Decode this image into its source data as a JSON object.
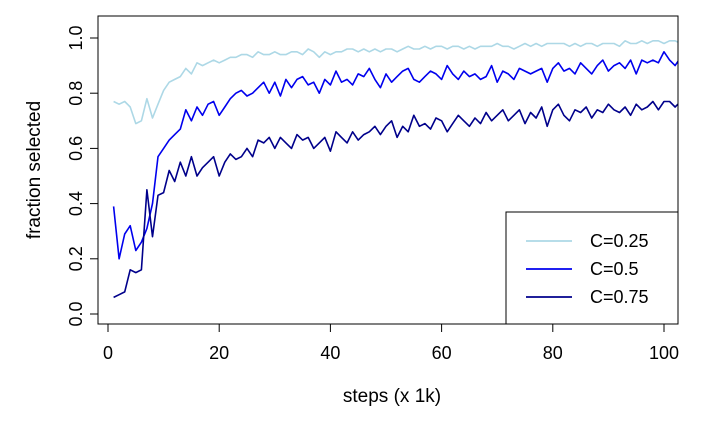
{
  "chart_data": {
    "type": "line",
    "title": "",
    "xlabel": "steps (x 1k)",
    "ylabel": "fraction selected",
    "xlim": [
      0,
      104
    ],
    "ylim": [
      0,
      1
    ],
    "xticks": [
      "0",
      "20",
      "40",
      "60",
      "80",
      "100"
    ],
    "yticks": [
      "0.0",
      "0.2",
      "0.4",
      "0.6",
      "0.8",
      "1.0"
    ],
    "grid": false,
    "legend_position": "bottom-right",
    "series": [
      {
        "name": "C=0.25",
        "color": "#add8e6",
        "x": [
          1,
          2,
          3,
          4,
          5,
          6,
          7,
          8,
          9,
          10,
          11,
          12,
          13,
          14,
          15,
          16,
          17,
          18,
          19,
          20,
          21,
          22,
          23,
          24,
          25,
          26,
          27,
          28,
          29,
          30,
          31,
          32,
          33,
          34,
          35,
          36,
          37,
          38,
          39,
          40,
          41,
          42,
          43,
          44,
          45,
          46,
          47,
          48,
          49,
          50,
          51,
          52,
          53,
          54,
          55,
          56,
          57,
          58,
          59,
          60,
          61,
          62,
          63,
          64,
          65,
          66,
          67,
          68,
          69,
          70,
          71,
          72,
          73,
          74,
          75,
          76,
          77,
          78,
          79,
          80,
          81,
          82,
          83,
          84,
          85,
          86,
          87,
          88,
          89,
          90,
          91,
          92,
          93,
          94,
          95,
          96,
          97,
          98,
          99,
          100,
          101,
          102,
          103,
          104
        ],
        "values": [
          0.77,
          0.76,
          0.77,
          0.75,
          0.69,
          0.7,
          0.78,
          0.71,
          0.76,
          0.81,
          0.84,
          0.85,
          0.86,
          0.89,
          0.87,
          0.91,
          0.9,
          0.91,
          0.92,
          0.91,
          0.92,
          0.93,
          0.93,
          0.94,
          0.94,
          0.93,
          0.95,
          0.94,
          0.94,
          0.95,
          0.94,
          0.94,
          0.95,
          0.95,
          0.94,
          0.96,
          0.95,
          0.93,
          0.95,
          0.94,
          0.95,
          0.95,
          0.96,
          0.96,
          0.95,
          0.96,
          0.95,
          0.96,
          0.95,
          0.96,
          0.96,
          0.95,
          0.96,
          0.97,
          0.96,
          0.96,
          0.97,
          0.96,
          0.97,
          0.97,
          0.96,
          0.97,
          0.97,
          0.96,
          0.97,
          0.96,
          0.97,
          0.97,
          0.97,
          0.98,
          0.97,
          0.97,
          0.96,
          0.97,
          0.98,
          0.97,
          0.98,
          0.97,
          0.98,
          0.98,
          0.98,
          0.98,
          0.97,
          0.98,
          0.97,
          0.98,
          0.98,
          0.97,
          0.98,
          0.98,
          0.98,
          0.97,
          0.99,
          0.98,
          0.98,
          0.99,
          0.98,
          0.99,
          0.99,
          0.98,
          0.99,
          0.99,
          0.98,
          0.98
        ]
      },
      {
        "name": "C=0.5",
        "color": "#0000ee",
        "x": [
          1,
          2,
          3,
          4,
          5,
          6,
          7,
          8,
          9,
          10,
          11,
          12,
          13,
          14,
          15,
          16,
          17,
          18,
          19,
          20,
          21,
          22,
          23,
          24,
          25,
          26,
          27,
          28,
          29,
          30,
          31,
          32,
          33,
          34,
          35,
          36,
          37,
          38,
          39,
          40,
          41,
          42,
          43,
          44,
          45,
          46,
          47,
          48,
          49,
          50,
          51,
          52,
          53,
          54,
          55,
          56,
          57,
          58,
          59,
          60,
          61,
          62,
          63,
          64,
          65,
          66,
          67,
          68,
          69,
          70,
          71,
          72,
          73,
          74,
          75,
          76,
          77,
          78,
          79,
          80,
          81,
          82,
          83,
          84,
          85,
          86,
          87,
          88,
          89,
          90,
          91,
          92,
          93,
          94,
          95,
          96,
          97,
          98,
          99,
          100,
          101,
          102,
          103,
          104
        ],
        "values": [
          0.39,
          0.2,
          0.29,
          0.32,
          0.23,
          0.26,
          0.31,
          0.4,
          0.57,
          0.6,
          0.63,
          0.65,
          0.67,
          0.74,
          0.7,
          0.75,
          0.72,
          0.76,
          0.77,
          0.72,
          0.75,
          0.78,
          0.8,
          0.81,
          0.79,
          0.8,
          0.82,
          0.84,
          0.8,
          0.84,
          0.79,
          0.85,
          0.82,
          0.85,
          0.86,
          0.83,
          0.84,
          0.8,
          0.85,
          0.83,
          0.88,
          0.84,
          0.85,
          0.83,
          0.87,
          0.86,
          0.89,
          0.85,
          0.82,
          0.87,
          0.84,
          0.86,
          0.88,
          0.89,
          0.85,
          0.84,
          0.86,
          0.88,
          0.87,
          0.85,
          0.9,
          0.87,
          0.85,
          0.88,
          0.86,
          0.87,
          0.85,
          0.86,
          0.9,
          0.84,
          0.88,
          0.87,
          0.85,
          0.89,
          0.88,
          0.87,
          0.88,
          0.89,
          0.84,
          0.89,
          0.91,
          0.88,
          0.89,
          0.87,
          0.91,
          0.89,
          0.87,
          0.9,
          0.92,
          0.88,
          0.9,
          0.91,
          0.89,
          0.92,
          0.87,
          0.92,
          0.91,
          0.92,
          0.91,
          0.95,
          0.92,
          0.9,
          0.93,
          0.9
        ]
      },
      {
        "name": "C=0.75",
        "color": "#00008b",
        "x": [
          1,
          2,
          3,
          4,
          5,
          6,
          7,
          8,
          9,
          10,
          11,
          12,
          13,
          14,
          15,
          16,
          17,
          18,
          19,
          20,
          21,
          22,
          23,
          24,
          25,
          26,
          27,
          28,
          29,
          30,
          31,
          32,
          33,
          34,
          35,
          36,
          37,
          38,
          39,
          40,
          41,
          42,
          43,
          44,
          45,
          46,
          47,
          48,
          49,
          50,
          51,
          52,
          53,
          54,
          55,
          56,
          57,
          58,
          59,
          60,
          61,
          62,
          63,
          64,
          65,
          66,
          67,
          68,
          69,
          70,
          71,
          72,
          73,
          74,
          75,
          76,
          77,
          78,
          79,
          80,
          81,
          82,
          83,
          84,
          85,
          86,
          87,
          88,
          89,
          90,
          91,
          92,
          93,
          94,
          95,
          96,
          97,
          98,
          99,
          100,
          101,
          102,
          103,
          104
        ],
        "values": [
          0.06,
          0.07,
          0.08,
          0.16,
          0.15,
          0.16,
          0.45,
          0.28,
          0.43,
          0.44,
          0.52,
          0.48,
          0.55,
          0.5,
          0.57,
          0.5,
          0.53,
          0.55,
          0.57,
          0.5,
          0.55,
          0.58,
          0.56,
          0.57,
          0.6,
          0.57,
          0.63,
          0.62,
          0.64,
          0.6,
          0.64,
          0.62,
          0.6,
          0.65,
          0.63,
          0.64,
          0.6,
          0.62,
          0.64,
          0.59,
          0.66,
          0.64,
          0.62,
          0.66,
          0.63,
          0.65,
          0.66,
          0.68,
          0.65,
          0.68,
          0.7,
          0.64,
          0.68,
          0.66,
          0.72,
          0.68,
          0.69,
          0.67,
          0.71,
          0.7,
          0.66,
          0.69,
          0.72,
          0.7,
          0.68,
          0.71,
          0.69,
          0.73,
          0.7,
          0.72,
          0.74,
          0.7,
          0.72,
          0.74,
          0.69,
          0.73,
          0.71,
          0.75,
          0.68,
          0.74,
          0.76,
          0.72,
          0.7,
          0.74,
          0.73,
          0.75,
          0.71,
          0.74,
          0.73,
          0.76,
          0.74,
          0.73,
          0.75,
          0.72,
          0.76,
          0.74,
          0.75,
          0.77,
          0.74,
          0.77,
          0.77,
          0.75,
          0.77,
          0.7
        ]
      }
    ]
  }
}
